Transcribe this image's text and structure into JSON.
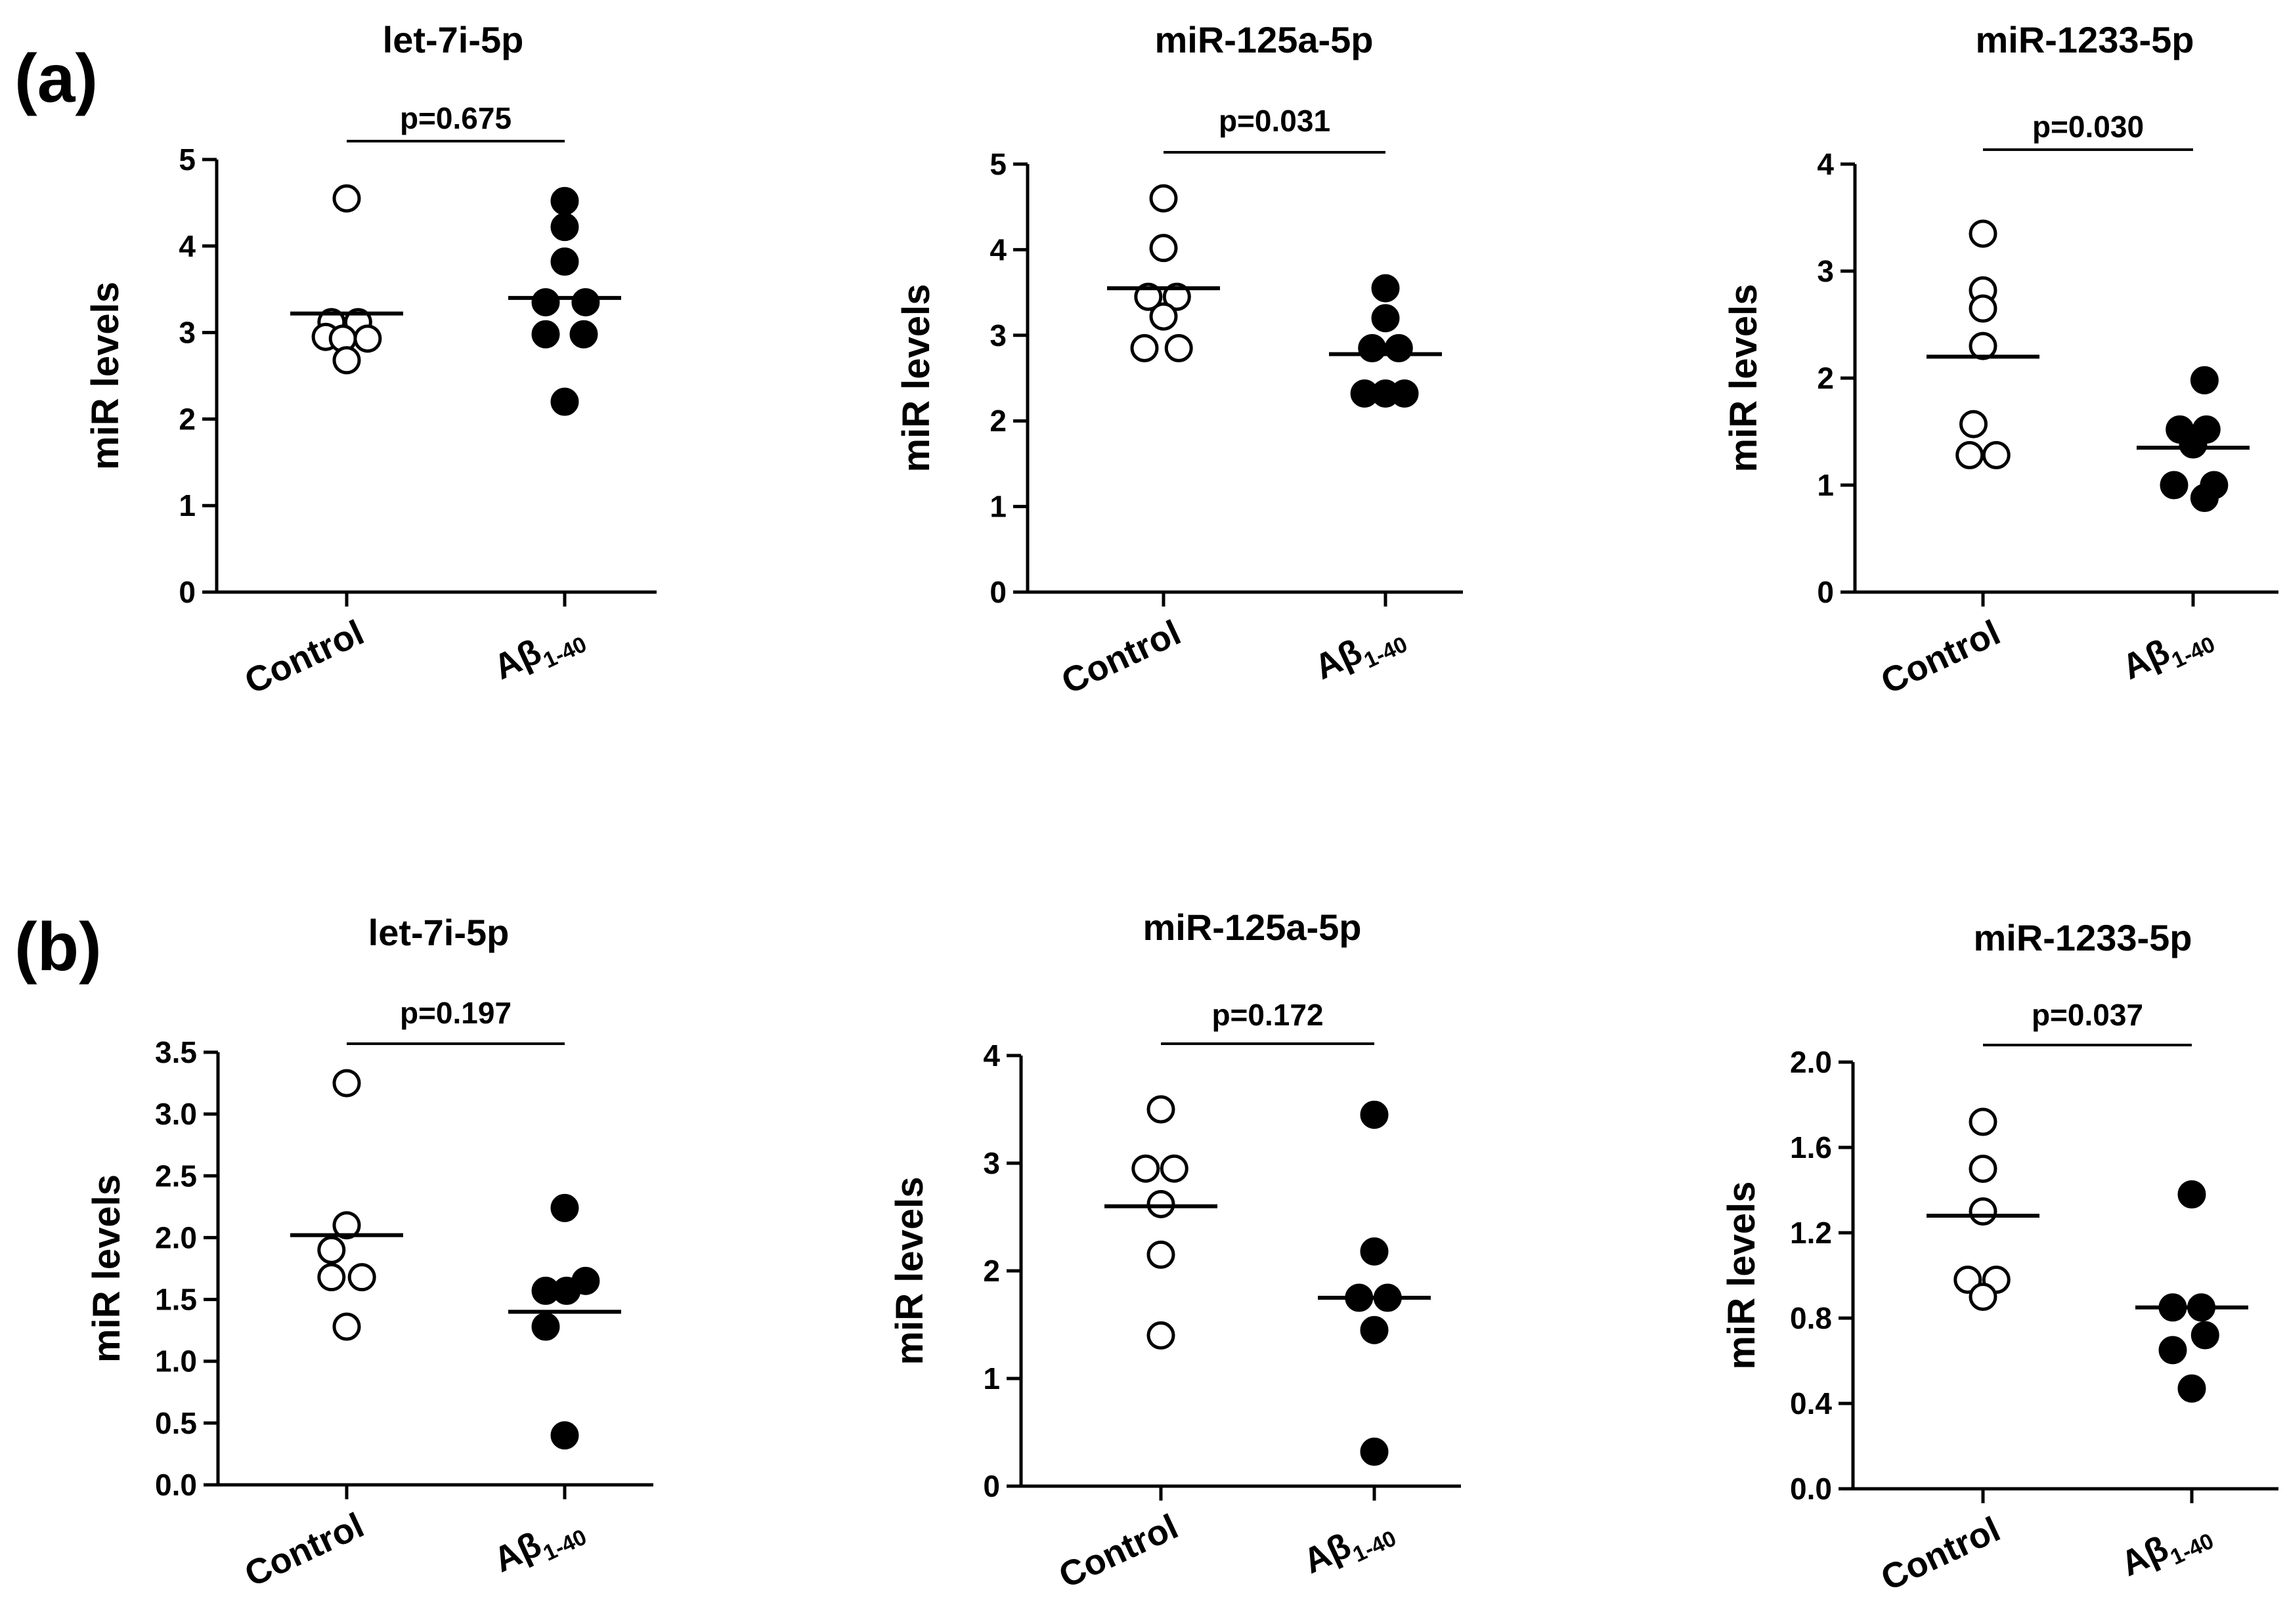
{
  "figure": {
    "panel_labels": [
      "(a)",
      "(b)"
    ]
  },
  "chart_data": [
    {
      "type": "scatter",
      "panel": "(a)",
      "title": "let-7i-5p",
      "ylabel": "miR levels",
      "categories": [
        {
          "main": "Control",
          "sub": ""
        },
        {
          "main": "Aβ",
          "sub": "1-40"
        }
      ],
      "ylim": [
        0,
        5
      ],
      "yticks": [
        "0",
        "1",
        "2",
        "3",
        "4",
        "5"
      ],
      "ytick_values": [
        0,
        1,
        2,
        3,
        4,
        5
      ],
      "pvalue": "p=0.675",
      "series": [
        {
          "name": "Control",
          "fill": "open",
          "means": 3.22,
          "points": [
            [
              0,
              4.55
            ],
            [
              -0.4,
              3.12
            ],
            [
              0.3,
              3.12
            ],
            [
              -0.55,
              2.95
            ],
            [
              -0.1,
              2.93
            ],
            [
              0.55,
              2.93
            ],
            [
              0,
              2.68
            ]
          ]
        },
        {
          "name": "Aβ1-40",
          "fill": "filled",
          "means": 3.4,
          "points": [
            [
              0,
              4.52
            ],
            [
              0,
              4.22
            ],
            [
              0,
              3.82
            ],
            [
              -0.5,
              3.35
            ],
            [
              0.55,
              3.35
            ],
            [
              -0.5,
              2.98
            ],
            [
              0.5,
              2.98
            ],
            [
              0,
              2.2
            ]
          ]
        }
      ],
      "marker_color": "#000000"
    },
    {
      "type": "scatter",
      "panel": "(a)",
      "title": "miR-125a-5p",
      "ylabel": "miR levels",
      "categories": [
        {
          "main": "Control",
          "sub": ""
        },
        {
          "main": "Aβ",
          "sub": "1-40"
        }
      ],
      "ylim": [
        0,
        5
      ],
      "yticks": [
        "0",
        "1",
        "2",
        "3",
        "4",
        "5"
      ],
      "ytick_values": [
        0,
        1,
        2,
        3,
        4,
        5
      ],
      "pvalue": "p=0.031",
      "series": [
        {
          "name": "Control",
          "fill": "open",
          "means": 3.55,
          "points": [
            [
              0,
              4.6
            ],
            [
              0,
              4.02
            ],
            [
              -0.4,
              3.45
            ],
            [
              0.35,
              3.45
            ],
            [
              0,
              3.22
            ],
            [
              -0.5,
              2.85
            ],
            [
              0.4,
              2.85
            ]
          ]
        },
        {
          "name": "Aβ1-40",
          "fill": "filled",
          "means": 2.78,
          "points": [
            [
              0,
              3.55
            ],
            [
              0,
              3.2
            ],
            [
              -0.35,
              2.85
            ],
            [
              0.35,
              2.85
            ],
            [
              -0.55,
              2.32
            ],
            [
              0,
              2.32
            ],
            [
              0.5,
              2.32
            ]
          ]
        }
      ],
      "marker_color": "#000000"
    },
    {
      "type": "scatter",
      "panel": "(a)",
      "title": "miR-1233-5p",
      "ylabel": "miR levels",
      "categories": [
        {
          "main": "Control",
          "sub": ""
        },
        {
          "main": "Aβ",
          "sub": "1-40"
        }
      ],
      "ylim": [
        0,
        4
      ],
      "yticks": [
        "0",
        "1",
        "2",
        "3",
        "4"
      ],
      "ytick_values": [
        0,
        1,
        2,
        3,
        4
      ],
      "pvalue": "p=0.030",
      "series": [
        {
          "name": "Control",
          "fill": "open",
          "means": 2.2,
          "points": [
            [
              0,
              3.35
            ],
            [
              0,
              2.82
            ],
            [
              0,
              2.65
            ],
            [
              0,
              2.3
            ],
            [
              -0.25,
              1.57
            ],
            [
              -0.35,
              1.28
            ],
            [
              0.35,
              1.28
            ]
          ]
        },
        {
          "name": "Aβ1-40",
          "fill": "filled",
          "means": 1.35,
          "points": [
            [
              0.3,
              1.98
            ],
            [
              -0.35,
              1.52
            ],
            [
              0.35,
              1.52
            ],
            [
              0,
              1.38
            ],
            [
              -0.5,
              1.0
            ],
            [
              0.55,
              1.0
            ],
            [
              0.3,
              0.88
            ]
          ]
        }
      ],
      "marker_color": "#000000"
    },
    {
      "type": "scatter",
      "panel": "(b)",
      "title": "let-7i-5p",
      "ylabel": "miR levels",
      "categories": [
        {
          "main": "Control",
          "sub": ""
        },
        {
          "main": "Aβ",
          "sub": "1-40"
        }
      ],
      "ylim": [
        0,
        3.5
      ],
      "yticks": [
        "0.0",
        "0.5",
        "1.0",
        "1.5",
        "2.0",
        "2.5",
        "3.0",
        "3.5"
      ],
      "ytick_values": [
        0,
        0.5,
        1,
        1.5,
        2,
        2.5,
        3,
        3.5
      ],
      "pvalue": "p=0.197",
      "series": [
        {
          "name": "Control",
          "fill": "open",
          "means": 2.02,
          "points": [
            [
              0,
              3.25
            ],
            [
              0,
              2.1
            ],
            [
              -0.4,
              1.9
            ],
            [
              -0.4,
              1.68
            ],
            [
              0.4,
              1.68
            ],
            [
              0,
              1.28
            ]
          ]
        },
        {
          "name": "Aβ1-40",
          "fill": "filled",
          "means": 1.4,
          "points": [
            [
              0,
              2.24
            ],
            [
              -0.5,
              1.57
            ],
            [
              0.05,
              1.57
            ],
            [
              0.55,
              1.65
            ],
            [
              -0.5,
              1.28
            ],
            [
              0,
              0.4
            ]
          ]
        }
      ],
      "marker_color": "#000000"
    },
    {
      "type": "scatter",
      "panel": "(b)",
      "title": "miR-125a-5p",
      "ylabel": "miR levels",
      "categories": [
        {
          "main": "Control",
          "sub": ""
        },
        {
          "main": "Aβ",
          "sub": "1-40"
        }
      ],
      "ylim": [
        0,
        4
      ],
      "yticks": [
        "0",
        "1",
        "2",
        "3",
        "4"
      ],
      "ytick_values": [
        0,
        1,
        2,
        3,
        4
      ],
      "pvalue": "p=0.172",
      "series": [
        {
          "name": "Control",
          "fill": "open",
          "means": 2.6,
          "points": [
            [
              0,
              3.5
            ],
            [
              -0.4,
              2.95
            ],
            [
              0.35,
              2.95
            ],
            [
              0,
              2.62
            ],
            [
              0,
              2.15
            ],
            [
              0,
              1.4
            ]
          ]
        },
        {
          "name": "Aβ1-40",
          "fill": "filled",
          "means": 1.75,
          "points": [
            [
              0,
              3.45
            ],
            [
              0,
              2.18
            ],
            [
              -0.4,
              1.75
            ],
            [
              0.35,
              1.75
            ],
            [
              0,
              1.45
            ],
            [
              0,
              0.32
            ]
          ]
        }
      ],
      "marker_color": "#000000"
    },
    {
      "type": "scatter",
      "panel": "(b)",
      "title": "miR-1233-5p",
      "ylabel": "miR levels",
      "categories": [
        {
          "main": "Control",
          "sub": ""
        },
        {
          "main": "Aβ",
          "sub": "1-40"
        }
      ],
      "ylim": [
        0,
        2.0
      ],
      "yticks": [
        "0.0",
        "0.4",
        "0.8",
        "1.2",
        "1.6",
        "2.0"
      ],
      "ytick_values": [
        0,
        0.4,
        0.8,
        1.2,
        1.6,
        2.0
      ],
      "pvalue": "p=0.037",
      "series": [
        {
          "name": "Control",
          "fill": "open",
          "means": 1.28,
          "points": [
            [
              0,
              1.72
            ],
            [
              0,
              1.5
            ],
            [
              0,
              1.3
            ],
            [
              -0.4,
              0.98
            ],
            [
              0.35,
              0.98
            ],
            [
              0,
              0.9
            ]
          ]
        },
        {
          "name": "Aβ1-40",
          "fill": "filled",
          "means": 0.85,
          "points": [
            [
              0,
              1.38
            ],
            [
              -0.5,
              0.85
            ],
            [
              0.25,
              0.85
            ],
            [
              0.35,
              0.72
            ],
            [
              -0.5,
              0.65
            ],
            [
              0,
              0.47
            ]
          ]
        }
      ],
      "marker_color": "#000000"
    }
  ]
}
